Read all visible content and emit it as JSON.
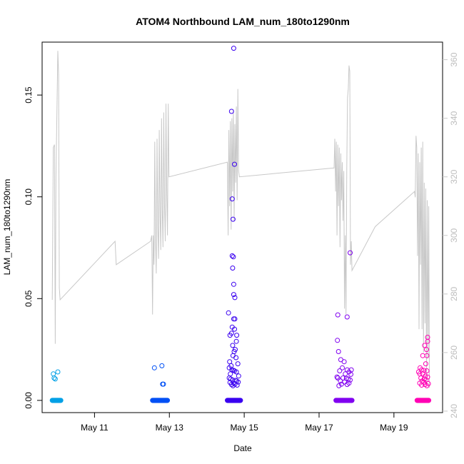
{
  "chart_data": {
    "type": "scatter",
    "title": "ATOM4 Northbound LAM_num_180to1290nm",
    "xlabel": "Date",
    "ylabel": "LAM_num_180to1290nm",
    "x_range_days": [
      9.6,
      20.3
    ],
    "x_ticks": [
      {
        "value": 11,
        "label": "May 11"
      },
      {
        "value": 13,
        "label": "May 13"
      },
      {
        "value": 15,
        "label": "May 15"
      },
      {
        "value": 17,
        "label": "May 17"
      },
      {
        "value": 19,
        "label": "May 19"
      }
    ],
    "ylim": [
      -0.006,
      0.176
    ],
    "y_ticks": [
      0.0,
      0.05,
      0.1,
      0.15
    ],
    "y_tick_labels": [
      "0.00",
      "0.05",
      "0.10",
      "0.15"
    ],
    "y2lim": [
      239.5,
      366
    ],
    "y2_ticks": [
      240,
      260,
      280,
      300,
      320,
      340,
      360
    ],
    "y2_color": "#c8c8c8",
    "grid": false,
    "series": [
      {
        "color": "#00a0e6",
        "zero_range": [
          9.87,
          10.1
        ],
        "points": [
          [
            9.9,
            0.013
          ],
          [
            9.92,
            0.011
          ],
          [
            9.95,
            0.0105
          ],
          [
            10.02,
            0.014
          ]
        ]
      },
      {
        "color": "#0050f5",
        "zero_range": [
          12.55,
          12.95
        ],
        "points": [
          [
            12.6,
            0.016
          ],
          [
            12.8,
            0.017
          ],
          [
            12.82,
            0.008
          ],
          [
            12.84,
            0.008
          ]
        ]
      },
      {
        "color": "#3a00f0",
        "zero_range": [
          14.55,
          14.9
        ],
        "points": [
          [
            14.72,
            0.173
          ],
          [
            14.66,
            0.142
          ],
          [
            14.74,
            0.116
          ],
          [
            14.68,
            0.099
          ],
          [
            14.7,
            0.089
          ],
          [
            14.68,
            0.071
          ],
          [
            14.71,
            0.0705
          ],
          [
            14.69,
            0.065
          ],
          [
            14.72,
            0.057
          ],
          [
            14.72,
            0.052
          ],
          [
            14.75,
            0.0505
          ],
          [
            14.58,
            0.043
          ],
          [
            14.72,
            0.04
          ],
          [
            14.75,
            0.04
          ],
          [
            14.68,
            0.036
          ],
          [
            14.74,
            0.035
          ],
          [
            14.66,
            0.033
          ],
          [
            14.8,
            0.032
          ],
          [
            14.62,
            0.032
          ],
          [
            14.79,
            0.029
          ],
          [
            14.69,
            0.027
          ],
          [
            14.76,
            0.025
          ],
          [
            14.73,
            0.024
          ],
          [
            14.7,
            0.022
          ],
          [
            14.78,
            0.021
          ],
          [
            14.61,
            0.019
          ],
          [
            14.83,
            0.018
          ],
          [
            14.65,
            0.017
          ],
          [
            14.6,
            0.016
          ],
          [
            14.67,
            0.015
          ],
          [
            14.71,
            0.0148
          ],
          [
            14.74,
            0.0145
          ],
          [
            14.79,
            0.014
          ],
          [
            14.63,
            0.013
          ],
          [
            14.85,
            0.012
          ],
          [
            14.6,
            0.011
          ],
          [
            14.64,
            0.0105
          ],
          [
            14.69,
            0.01
          ],
          [
            14.77,
            0.0098
          ],
          [
            14.8,
            0.0095
          ],
          [
            14.84,
            0.009
          ],
          [
            14.62,
            0.0088
          ],
          [
            14.72,
            0.0085
          ],
          [
            14.75,
            0.008
          ],
          [
            14.66,
            0.0078
          ],
          [
            14.81,
            0.0075
          ],
          [
            14.7,
            0.0072
          ]
        ]
      },
      {
        "color": "#8000f0",
        "zero_range": [
          17.45,
          17.88
        ],
        "points": [
          [
            17.83,
            0.0725
          ],
          [
            17.5,
            0.042
          ],
          [
            17.75,
            0.041
          ],
          [
            17.49,
            0.0295
          ],
          [
            17.52,
            0.024
          ],
          [
            17.58,
            0.02
          ],
          [
            17.67,
            0.019
          ],
          [
            17.62,
            0.016
          ],
          [
            17.75,
            0.015
          ],
          [
            17.86,
            0.015
          ],
          [
            17.55,
            0.0145
          ],
          [
            17.8,
            0.014
          ],
          [
            17.7,
            0.013
          ],
          [
            17.85,
            0.0128
          ],
          [
            17.48,
            0.0115
          ],
          [
            17.5,
            0.011
          ],
          [
            17.64,
            0.011
          ],
          [
            17.73,
            0.0108
          ],
          [
            17.78,
            0.0105
          ],
          [
            17.83,
            0.01
          ],
          [
            17.57,
            0.0095
          ],
          [
            17.68,
            0.009
          ],
          [
            17.8,
            0.0085
          ],
          [
            17.6,
            0.008
          ],
          [
            17.75,
            0.0078
          ],
          [
            17.53,
            0.0072
          ]
        ]
      },
      {
        "color": "#ff00b4",
        "zero_range": [
          19.62,
          19.93
        ],
        "points": [
          [
            19.9,
            0.031
          ],
          [
            19.9,
            0.029
          ],
          [
            19.82,
            0.027
          ],
          [
            19.87,
            0.025
          ],
          [
            19.77,
            0.022
          ],
          [
            19.88,
            0.022
          ],
          [
            19.85,
            0.018
          ],
          [
            19.7,
            0.016
          ],
          [
            19.74,
            0.015
          ],
          [
            19.8,
            0.0148
          ],
          [
            19.88,
            0.0145
          ],
          [
            19.66,
            0.014
          ],
          [
            19.69,
            0.013
          ],
          [
            19.77,
            0.013
          ],
          [
            19.84,
            0.012
          ],
          [
            19.9,
            0.0115
          ],
          [
            19.72,
            0.011
          ],
          [
            19.81,
            0.0105
          ],
          [
            19.86,
            0.01
          ],
          [
            19.75,
            0.0095
          ],
          [
            19.8,
            0.009
          ],
          [
            19.69,
            0.0085
          ],
          [
            19.92,
            0.0082
          ],
          [
            19.83,
            0.0078
          ],
          [
            19.74,
            0.0075
          ],
          [
            19.88,
            0.0072
          ]
        ]
      }
    ],
    "background_line": {
      "color": "#c8c8c8",
      "points": [
        [
          9.87,
          278
        ],
        [
          9.9,
          330
        ],
        [
          9.93,
          331
        ],
        [
          9.95,
          263
        ],
        [
          9.97,
          320
        ],
        [
          10.02,
          363
        ],
        [
          10.04,
          355
        ],
        [
          10.06,
          282
        ],
        [
          10.08,
          278
        ],
        [
          11.55,
          298
        ],
        [
          11.58,
          290
        ],
        [
          12.5,
          298
        ],
        [
          12.53,
          300
        ],
        [
          12.55,
          273
        ],
        [
          12.57,
          300
        ],
        [
          12.59,
          290
        ],
        [
          12.61,
          332
        ],
        [
          12.63,
          298
        ],
        [
          12.65,
          287
        ],
        [
          12.67,
          333
        ],
        [
          12.69,
          303
        ],
        [
          12.71,
          292
        ],
        [
          12.73,
          336
        ],
        [
          12.75,
          307
        ],
        [
          12.77,
          295
        ],
        [
          12.79,
          340
        ],
        [
          12.81,
          309
        ],
        [
          12.83,
          296
        ],
        [
          12.85,
          342
        ],
        [
          12.87,
          311
        ],
        [
          12.89,
          298
        ],
        [
          12.91,
          345
        ],
        [
          12.93,
          314
        ],
        [
          12.95,
          300
        ],
        [
          12.97,
          345
        ],
        [
          12.99,
          320
        ],
        [
          14.55,
          325
        ],
        [
          14.57,
          300
        ],
        [
          14.59,
          336
        ],
        [
          14.61,
          310
        ],
        [
          14.63,
          339
        ],
        [
          14.65,
          302
        ],
        [
          14.67,
          340
        ],
        [
          14.69,
          315
        ],
        [
          14.71,
          343
        ],
        [
          14.73,
          305
        ],
        [
          14.75,
          338
        ],
        [
          14.77,
          318
        ],
        [
          14.79,
          344
        ],
        [
          14.81,
          312
        ],
        [
          14.83,
          350
        ],
        [
          14.85,
          322
        ],
        [
          14.87,
          320
        ],
        [
          17.38,
          323
        ],
        [
          17.4,
          323
        ],
        [
          17.42,
          333
        ],
        [
          17.44,
          315
        ],
        [
          17.46,
          332
        ],
        [
          17.48,
          300
        ],
        [
          17.5,
          331
        ],
        [
          17.52,
          310
        ],
        [
          17.54,
          330
        ],
        [
          17.56,
          296
        ],
        [
          17.58,
          328
        ],
        [
          17.6,
          312
        ],
        [
          17.62,
          325
        ],
        [
          17.64,
          305
        ],
        [
          17.66,
          322
        ],
        [
          17.68,
          275
        ],
        [
          17.7,
          300
        ],
        [
          17.72,
          273
        ],
        [
          17.74,
          323
        ],
        [
          17.76,
          347
        ],
        [
          17.78,
          350
        ],
        [
          17.8,
          358
        ],
        [
          17.82,
          356
        ],
        [
          17.84,
          290
        ],
        [
          17.86,
          298
        ],
        [
          17.88,
          288
        ],
        [
          18.5,
          303
        ],
        [
          19.55,
          315
        ],
        [
          19.57,
          313
        ],
        [
          19.59,
          334
        ],
        [
          19.61,
          330
        ],
        [
          19.63,
          293
        ],
        [
          19.65,
          328
        ],
        [
          19.67,
          268
        ],
        [
          19.69,
          325
        ],
        [
          19.71,
          290
        ],
        [
          19.73,
          330
        ],
        [
          19.75,
          268
        ],
        [
          19.77,
          332
        ],
        [
          19.79,
          260
        ],
        [
          19.81,
          318
        ],
        [
          19.83,
          270
        ],
        [
          19.85,
          316
        ],
        [
          19.87,
          250
        ],
        [
          19.89,
          312
        ],
        [
          19.91,
          258
        ],
        [
          19.93,
          310
        ],
        [
          19.95,
          248
        ]
      ]
    }
  }
}
